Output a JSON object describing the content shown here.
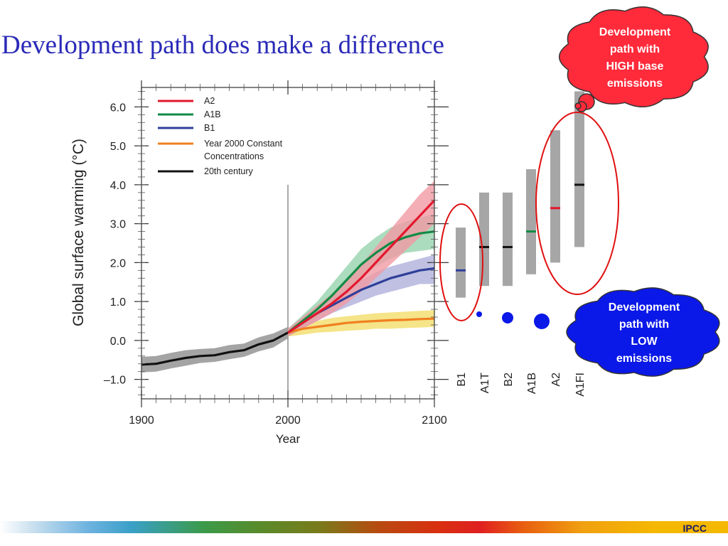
{
  "slide": {
    "title": "Development path does make a difference",
    "footer": "IPCC"
  },
  "callouts": {
    "high": {
      "lines": [
        "Development",
        "path with",
        "HIGH base",
        "emissions"
      ],
      "color": "#ff2a3a"
    },
    "low": {
      "lines": [
        "Development",
        "path with",
        "LOW",
        "emissions"
      ],
      "color": "#0a18e8"
    }
  },
  "colors": {
    "A2": "#e3172d",
    "A1B": "#128a45",
    "B1": "#2e3f99",
    "constant": "#f08020",
    "century20": "#111111",
    "range_bar": "#a6a6a6",
    "ellipse": "#e01010"
  },
  "chart_data": {
    "type": "line",
    "xlabel": "Year",
    "ylabel": "Global surface warming (°C)",
    "xlim": [
      1900,
      2100
    ],
    "ylim": [
      -1.5,
      6.5
    ],
    "x_ticks": [
      1900,
      2000,
      2100
    ],
    "y_ticks": [
      {
        "value": 6.0,
        "label": "6.0"
      },
      {
        "value": 5.0,
        "label": "5.0"
      },
      {
        "value": 4.0,
        "label": "4.0"
      },
      {
        "value": 3.0,
        "label": "3.0"
      },
      {
        "value": 2.0,
        "label": "2.0"
      },
      {
        "value": 1.0,
        "label": "1.0"
      },
      {
        "value": 0.0,
        "label": "0.0"
      },
      {
        "value": -1.0,
        "label": "–1.0"
      }
    ],
    "legend": {
      "placement": "top-left",
      "entries": [
        "A2",
        "A1B",
        "B1",
        "Year 2000 Constant Concentrations",
        "20th century"
      ]
    },
    "reference_line_year": 2000,
    "series": [
      {
        "name": "A2",
        "key": "A2",
        "x": [
          2000,
          2010,
          2020,
          2030,
          2040,
          2050,
          2060,
          2070,
          2080,
          2090,
          2100
        ],
        "values": [
          0.2,
          0.45,
          0.7,
          0.95,
          1.25,
          1.6,
          2.0,
          2.4,
          2.8,
          3.2,
          3.6
        ],
        "band_lower": [
          0.1,
          0.3,
          0.5,
          0.7,
          0.95,
          1.25,
          1.6,
          1.95,
          2.3,
          2.65,
          3.0
        ],
        "band_upper": [
          0.3,
          0.6,
          0.9,
          1.2,
          1.55,
          1.95,
          2.4,
          2.85,
          3.3,
          3.75,
          4.1
        ]
      },
      {
        "name": "A1B",
        "key": "A1B",
        "x": [
          2000,
          2010,
          2020,
          2030,
          2040,
          2050,
          2060,
          2070,
          2080,
          2090,
          2100
        ],
        "values": [
          0.2,
          0.5,
          0.8,
          1.15,
          1.55,
          1.95,
          2.25,
          2.5,
          2.65,
          2.75,
          2.8
        ],
        "band_lower": [
          0.1,
          0.35,
          0.6,
          0.9,
          1.25,
          1.6,
          1.9,
          2.1,
          2.25,
          2.3,
          2.35
        ],
        "band_upper": [
          0.3,
          0.65,
          1.0,
          1.45,
          1.9,
          2.35,
          2.65,
          2.9,
          3.05,
          3.15,
          3.25
        ]
      },
      {
        "name": "B1",
        "key": "B1",
        "x": [
          2000,
          2010,
          2020,
          2030,
          2040,
          2050,
          2060,
          2070,
          2080,
          2090,
          2100
        ],
        "values": [
          0.2,
          0.45,
          0.7,
          0.9,
          1.1,
          1.3,
          1.45,
          1.6,
          1.7,
          1.8,
          1.85
        ],
        "band_lower": [
          0.1,
          0.3,
          0.5,
          0.7,
          0.85,
          1.0,
          1.15,
          1.25,
          1.35,
          1.45,
          1.45
        ],
        "band_upper": [
          0.3,
          0.6,
          0.9,
          1.1,
          1.35,
          1.55,
          1.75,
          1.9,
          2.0,
          2.1,
          2.2
        ]
      },
      {
        "name": "Year 2000 Constant Concentrations",
        "key": "constant",
        "x": [
          2000,
          2010,
          2020,
          2030,
          2040,
          2050,
          2060,
          2070,
          2080,
          2090,
          2100
        ],
        "values": [
          0.2,
          0.3,
          0.35,
          0.4,
          0.45,
          0.48,
          0.5,
          0.52,
          0.53,
          0.55,
          0.56
        ],
        "band_lower": [
          0.1,
          0.15,
          0.2,
          0.22,
          0.25,
          0.27,
          0.3,
          0.3,
          0.32,
          0.33,
          0.35
        ],
        "band_upper": [
          0.3,
          0.45,
          0.5,
          0.58,
          0.62,
          0.66,
          0.7,
          0.72,
          0.74,
          0.76,
          0.78
        ]
      },
      {
        "name": "20th century",
        "key": "century20",
        "x": [
          1900,
          1910,
          1920,
          1930,
          1940,
          1950,
          1960,
          1970,
          1980,
          1990,
          2000
        ],
        "values": [
          -0.62,
          -0.6,
          -0.52,
          -0.45,
          -0.4,
          -0.38,
          -0.3,
          -0.25,
          -0.1,
          0.0,
          0.2
        ],
        "band_lower": [
          -0.82,
          -0.8,
          -0.72,
          -0.65,
          -0.58,
          -0.55,
          -0.48,
          -0.42,
          -0.28,
          -0.18,
          0.05
        ],
        "band_upper": [
          -0.42,
          -0.4,
          -0.32,
          -0.25,
          -0.22,
          -0.2,
          -0.12,
          -0.08,
          0.08,
          0.18,
          0.35
        ]
      }
    ],
    "range_bars": [
      {
        "label": "B1",
        "low": 1.1,
        "high": 2.9,
        "best": 1.8,
        "best_color": "#2e3f99",
        "label_color": "#2e3f99",
        "marker_radius": 4
      },
      {
        "label": "A1T",
        "low": 1.4,
        "high": 3.8,
        "best": 2.4,
        "best_color": "#111111",
        "label_color": "#111111",
        "marker_radius": 0
      },
      {
        "label": "B2",
        "low": 1.4,
        "high": 3.8,
        "best": 2.4,
        "best_color": "#111111",
        "label_color": "#111111",
        "marker_radius": 8
      },
      {
        "label": "A1B",
        "low": 1.7,
        "high": 4.4,
        "best": 2.8,
        "best_color": "#128a45",
        "label_color": "#128a45",
        "marker_radius": 11
      },
      {
        "label": "A2",
        "low": 2.0,
        "high": 5.4,
        "best": 3.4,
        "best_color": "#e3172d",
        "label_color": "#e3172d",
        "marker_radius": 0
      },
      {
        "label": "A1FI",
        "low": 2.4,
        "high": 6.4,
        "best": 4.0,
        "best_color": "#111111",
        "label_color": "#111111",
        "marker_radius": 0
      }
    ]
  }
}
